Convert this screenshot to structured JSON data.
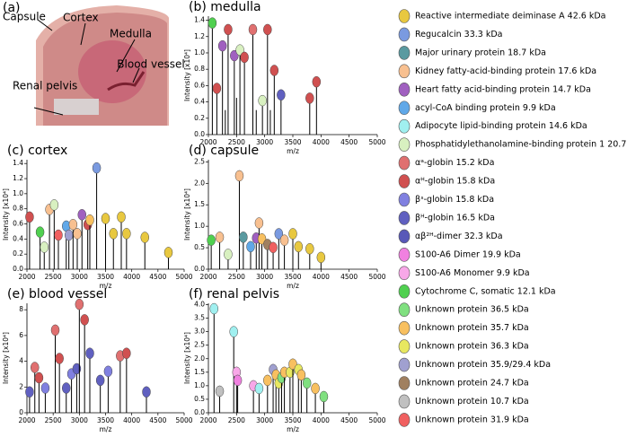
{
  "photo": {
    "label": "(a)",
    "annotations": [
      "Capsule",
      "Cortex",
      "Medulla",
      "Blood vessel",
      "Renal pelvis"
    ]
  },
  "legend": [
    {
      "name": "Reactive intermediate deiminase A 42.6 kDa",
      "color": "#e8c840"
    },
    {
      "name": "Regucalcin 33.3 kDa",
      "color": "#7a9ae0"
    },
    {
      "name": "Major urinary protein 18.7 kDa",
      "color": "#5a9aa0"
    },
    {
      "name": "Kidney fatty-acid-binding protein 17.6 kDa",
      "color": "#f8c090"
    },
    {
      "name": "Heart fatty acid-binding protein 14.7 kDa",
      "color": "#a060c0"
    },
    {
      "name": "acyl-CoA binding protein 9.9 kDa",
      "color": "#60a8e8"
    },
    {
      "name": "Adipocyte lipid-binding protein 14.6 kDa",
      "color": "#a0f0f0"
    },
    {
      "name": "Phosphatidylethanolamine-binding protein 1 20.7 kDa",
      "color": "#d8f0c0"
    },
    {
      "name": "αᵃ-globin 15.2 kDa",
      "color": "#e07070"
    },
    {
      "name": "αᴴ-globin 15.8 kDa",
      "color": "#d05050"
    },
    {
      "name": "βˢ-globin 15.8 kDa",
      "color": "#8080e0"
    },
    {
      "name": "βᴴ-globin 16.5 kDa",
      "color": "#6060c0"
    },
    {
      "name": "αβ²ᴴ-dimer 32.3 kDa",
      "color": "#5858b8"
    },
    {
      "name": "S100-A6 Dimer 19.9 kDa",
      "color": "#f080e0"
    },
    {
      "name": "S100-A6 Monomer 9.9 kDa",
      "color": "#f8a8e8"
    },
    {
      "name": "Cytochrome C, somatic 12.1 kDa",
      "color": "#50d050"
    },
    {
      "name": "Unknown protein 36.5 kDa",
      "color": "#80e080"
    },
    {
      "name": "Unknown protein 35.7 kDa",
      "color": "#f8c060"
    },
    {
      "name": "Unknown protein 36.3 kDa",
      "color": "#e8e860"
    },
    {
      "name": "Unknown protein 35.9/29.4 kDa",
      "color": "#a0a0d0"
    },
    {
      "name": "Unknown protein 24.7 kDa",
      "color": "#a08060"
    },
    {
      "name": "Unknown protein 10.7 kDa",
      "color": "#c0c0c0"
    },
    {
      "name": "Unknown protein 31.9 kDa",
      "color": "#f06060"
    }
  ],
  "chart_data": [
    {
      "type": "stem",
      "title": "(b) medulla",
      "xlabel": "m/z",
      "ylabel": "Intensity [x10⁴]",
      "xlim": [
        2000,
        5000
      ],
      "xticks": [
        2000,
        2500,
        3000,
        3500,
        4000,
        4500,
        5000
      ],
      "ylim": [
        0,
        1.45
      ],
      "yticks": [
        {
          "value": 0,
          "label": "0.0"
        },
        0.2,
        0.4,
        0.6,
        0.8,
        {
          "value": 1,
          "label": "1.0"
        },
        1.2,
        1.4
      ],
      "x": [
        2070,
        2150,
        2250,
        2300,
        2350,
        2460,
        2500,
        2560,
        2640,
        2790,
        2850,
        2960,
        3050,
        3100,
        3170,
        3290,
        3800,
        3920
      ],
      "values": [
        1.3,
        0.5,
        1.02,
        0.3,
        1.22,
        0.9,
        0.45,
        0.97,
        0.88,
        1.22,
        0.3,
        0.35,
        1.22,
        0.3,
        0.72,
        0.42,
        0.38,
        0.58
      ],
      "colors": [
        "#50d050",
        "#d05050",
        "#a060c0",
        null,
        "#d05050",
        "#a060c0",
        null,
        "#d8f0c0",
        "#d05050",
        "#e07070",
        null,
        "#d8f0c0",
        "#d05050",
        null,
        "#d05050",
        "#6060c0",
        "#d05050",
        "#d05050"
      ]
    },
    {
      "type": "stem",
      "title": "(c) cortex",
      "xlabel": "m/z",
      "ylabel": "Intensity [x10⁴]",
      "xlim": [
        2000,
        5000
      ],
      "xticks": [
        2000,
        2500,
        3000,
        3500,
        4000,
        4500,
        5000
      ],
      "ylim": [
        0,
        1.45
      ],
      "yticks": [
        {
          "value": 0,
          "label": "0.0"
        },
        0.2,
        0.4,
        0.6,
        0.8,
        {
          "value": 1,
          "label": "1.0"
        },
        1.2,
        1.4
      ],
      "x": [
        2050,
        2250,
        2330,
        2430,
        2520,
        2600,
        2750,
        2800,
        2880,
        2960,
        3050,
        3160,
        3200,
        3330,
        3500,
        3650,
        3800,
        3900,
        4250,
        4700
      ],
      "values": [
        0.62,
        0.42,
        0.22,
        0.72,
        0.78,
        0.38,
        0.5,
        0.38,
        0.52,
        0.4,
        0.65,
        0.52,
        0.58,
        1.27,
        0.6,
        0.4,
        0.62,
        0.4,
        0.35,
        0.15
      ],
      "colors": [
        "#d05050",
        "#50d050",
        "#d8f0c0",
        "#f8c090",
        "#d8f0c0",
        "#f06060",
        "#60a8e8",
        "#a0a0d0",
        "#f8c090",
        "#f8c090",
        "#a060c0",
        "#d05050",
        "#f8c060",
        "#7a9ae0",
        "#e8c840",
        "#e8c840",
        "#e8c840",
        "#e8c840",
        "#e8c840",
        "#e8c840"
      ]
    },
    {
      "type": "stem",
      "title": "(d) capsule",
      "xlabel": "m/z",
      "ylabel": "Intensity [x10⁴]",
      "xlim": [
        2000,
        5000
      ],
      "xticks": [
        2000,
        2500,
        3000,
        3500,
        4000,
        4500,
        5000
      ],
      "ylim": [
        0,
        2.55
      ],
      "yticks": [
        {
          "value": 0,
          "label": "0.0"
        },
        0.5,
        {
          "value": 1,
          "label": "1.0"
        },
        1.5,
        {
          "value": 2,
          "label": "2.0"
        },
        2.5
      ],
      "x": [
        2050,
        2200,
        2350,
        2550,
        2620,
        2750,
        2850,
        2900,
        2950,
        3050,
        3150,
        3250,
        3350,
        3500,
        3600,
        3800,
        4000
      ],
      "values": [
        0.55,
        0.62,
        0.22,
        2.05,
        0.62,
        0.4,
        0.6,
        0.95,
        0.58,
        0.45,
        0.38,
        0.7,
        0.55,
        0.7,
        0.4,
        0.35,
        0.15
      ],
      "colors": [
        "#50d050",
        "#f8c090",
        "#d8f0c0",
        "#f8c090",
        "#5a9aa0",
        "#60a8e8",
        "#a060c0",
        "#f8c090",
        "#f8c060",
        "#a08060",
        "#f06060",
        "#7a9ae0",
        "#f8c090",
        "#e8c840",
        "#e8c840",
        "#e8c840",
        "#e8c840"
      ]
    },
    {
      "type": "stem",
      "title": "(e) blood vessel",
      "xlabel": "m/z",
      "ylabel": "Intensity [x10⁴]",
      "xlim": [
        2000,
        5000
      ],
      "xticks": [
        2000,
        2500,
        3000,
        3500,
        4000,
        4500,
        5000
      ],
      "ylim": [
        0,
        8.5
      ],
      "yticks": [
        0,
        2,
        4,
        6,
        8
      ],
      "x": [
        2050,
        2150,
        2230,
        2350,
        2540,
        2620,
        2750,
        2850,
        2950,
        3000,
        3100,
        3200,
        3400,
        3550,
        3780,
        3900,
        4280
      ],
      "values": [
        1.2,
        3.1,
        2.3,
        1.5,
        6.0,
        3.8,
        1.5,
        2.6,
        3.0,
        8.0,
        6.8,
        4.2,
        2.1,
        2.8,
        4.0,
        4.2,
        1.2
      ],
      "colors": [
        "#6060c0",
        "#e07070",
        "#d05050",
        "#8080e0",
        "#e07070",
        "#d05050",
        "#6060c0",
        "#8080e0",
        "#6060c0",
        "#e07070",
        "#d05050",
        "#6060c0",
        "#6060c0",
        "#8080e0",
        "#e07070",
        "#d05050",
        "#6060c0"
      ]
    },
    {
      "type": "stem",
      "title": "(f) renal pelvis",
      "xlabel": "m/z",
      "ylabel": "Intensity [x10⁴]",
      "xlim": [
        2000,
        5000
      ],
      "xticks": [
        2000,
        2500,
        3000,
        3500,
        4000,
        4500,
        5000
      ],
      "ylim": [
        0,
        4.05
      ],
      "yticks": [
        {
          "value": 0,
          "label": "0.0"
        },
        0.5,
        {
          "value": 1,
          "label": "1.0"
        },
        1.5,
        {
          "value": 2,
          "label": "2.0"
        },
        2.5,
        {
          "value": 3,
          "label": "3.0"
        },
        3.5,
        {
          "value": 4,
          "label": "4.0"
        }
      ],
      "x": [
        2100,
        2200,
        2450,
        2500,
        2520,
        2800,
        2900,
        3050,
        3150,
        3200,
        3250,
        3300,
        3350,
        3450,
        3500,
        3600,
        3650,
        3750,
        3900,
        4050
      ],
      "values": [
        3.65,
        0.6,
        2.8,
        1.3,
        1.0,
        0.8,
        0.7,
        1.0,
        1.4,
        1.2,
        0.9,
        1.1,
        1.3,
        1.3,
        1.6,
        1.4,
        1.2,
        0.9,
        0.7,
        0.4
      ],
      "colors": [
        "#a0f0f0",
        "#c0c0c0",
        "#a0f0f0",
        "#f8a8e8",
        "#f080e0",
        "#f8a8e8",
        "#a0f0f0",
        "#f8c060",
        "#a0a0d0",
        "#f8c060",
        "#e8e860",
        "#80e080",
        "#f8c060",
        "#e8e860",
        "#f8c060",
        "#e8e860",
        "#f8c060",
        "#80e080",
        "#f8c060",
        "#80e080"
      ]
    }
  ]
}
